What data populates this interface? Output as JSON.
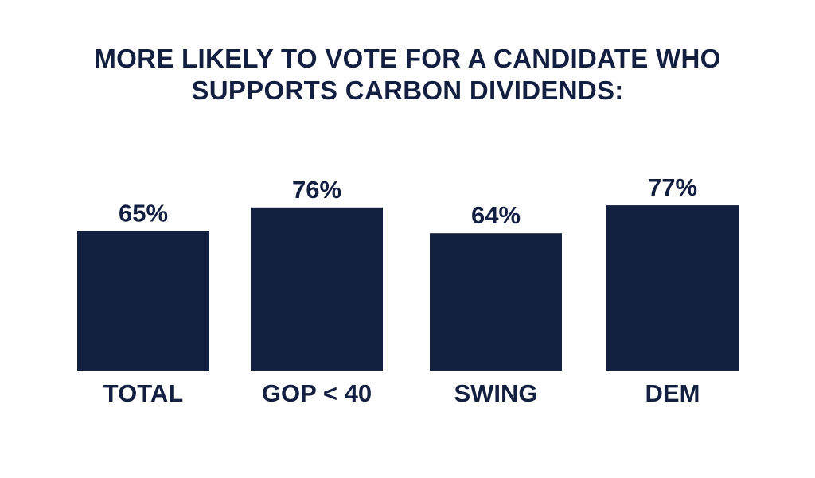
{
  "chart_data": {
    "type": "bar",
    "title_lines": [
      "MORE LIKELY TO VOTE FOR A CANDIDATE WHO",
      "SUPPORTS CARBON DIVIDENDS:"
    ],
    "categories": [
      "TOTAL",
      "GOP < 40",
      "SWING",
      "DEM"
    ],
    "values": [
      65,
      76,
      64,
      77
    ],
    "value_labels": [
      "65%",
      "76%",
      "64%",
      "77%"
    ],
    "unit": "%",
    "grid": false,
    "legend": "none",
    "bar_color": "#13203f",
    "text_color": "#131f41"
  }
}
